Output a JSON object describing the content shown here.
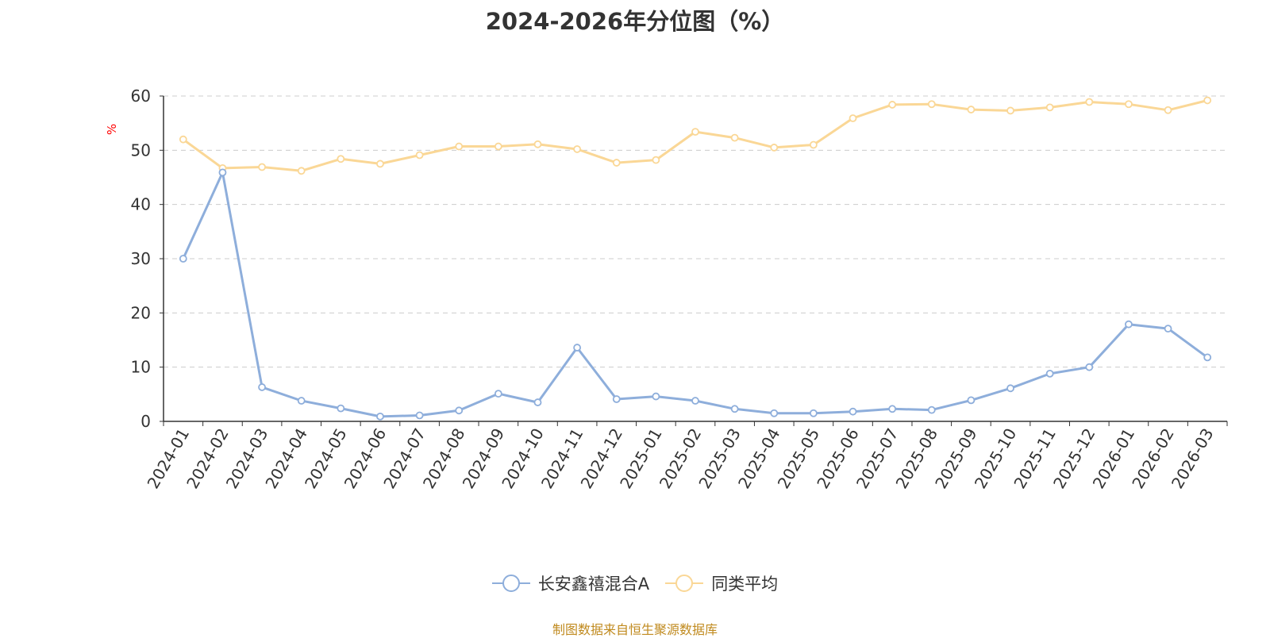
{
  "chart_data": {
    "type": "line",
    "title": "2024-2026年分位图（%）",
    "ylabel": "%",
    "ylim": [
      0,
      60
    ],
    "yticks": [
      0,
      10,
      20,
      30,
      40,
      50,
      60
    ],
    "grid": true,
    "legend_position": "bottom",
    "categories": [
      "2024-01",
      "2024-02",
      "2024-03",
      "2024-04",
      "2024-05",
      "2024-06",
      "2024-07",
      "2024-08",
      "2024-09",
      "2024-10",
      "2024-11",
      "2024-12",
      "2025-01",
      "2025-02",
      "2025-03",
      "2025-04",
      "2025-05",
      "2025-06",
      "2025-07",
      "2025-08",
      "2025-09",
      "2025-10",
      "2025-11",
      "2025-12",
      "2026-01",
      "2026-02",
      "2026-03"
    ],
    "series": [
      {
        "name": "长安鑫禧混合A",
        "color": "#8eaedb",
        "values": [
          30.0,
          45.9,
          6.3,
          3.8,
          2.4,
          0.9,
          1.1,
          2.0,
          5.1,
          3.5,
          13.6,
          4.1,
          4.6,
          3.8,
          2.3,
          1.5,
          1.5,
          1.8,
          2.3,
          2.1,
          3.9,
          6.1,
          8.8,
          10.0,
          17.9,
          17.1,
          11.8
        ]
      },
      {
        "name": "同类平均",
        "color": "#fad796",
        "values": [
          52.0,
          46.7,
          46.9,
          46.2,
          48.4,
          47.5,
          49.1,
          50.7,
          50.7,
          51.1,
          50.2,
          47.7,
          48.2,
          53.4,
          52.3,
          50.5,
          51.0,
          55.9,
          58.4,
          58.5,
          57.5,
          57.3,
          57.9,
          58.9,
          58.5,
          57.4,
          59.2
        ]
      }
    ]
  },
  "source_text": "制图数据来自恒生聚源数据库",
  "colors": {
    "title": "#333333",
    "axis": "#333333",
    "grid": "#cccccc",
    "ylabel": "#ff0000",
    "source": "#c08a1e"
  }
}
